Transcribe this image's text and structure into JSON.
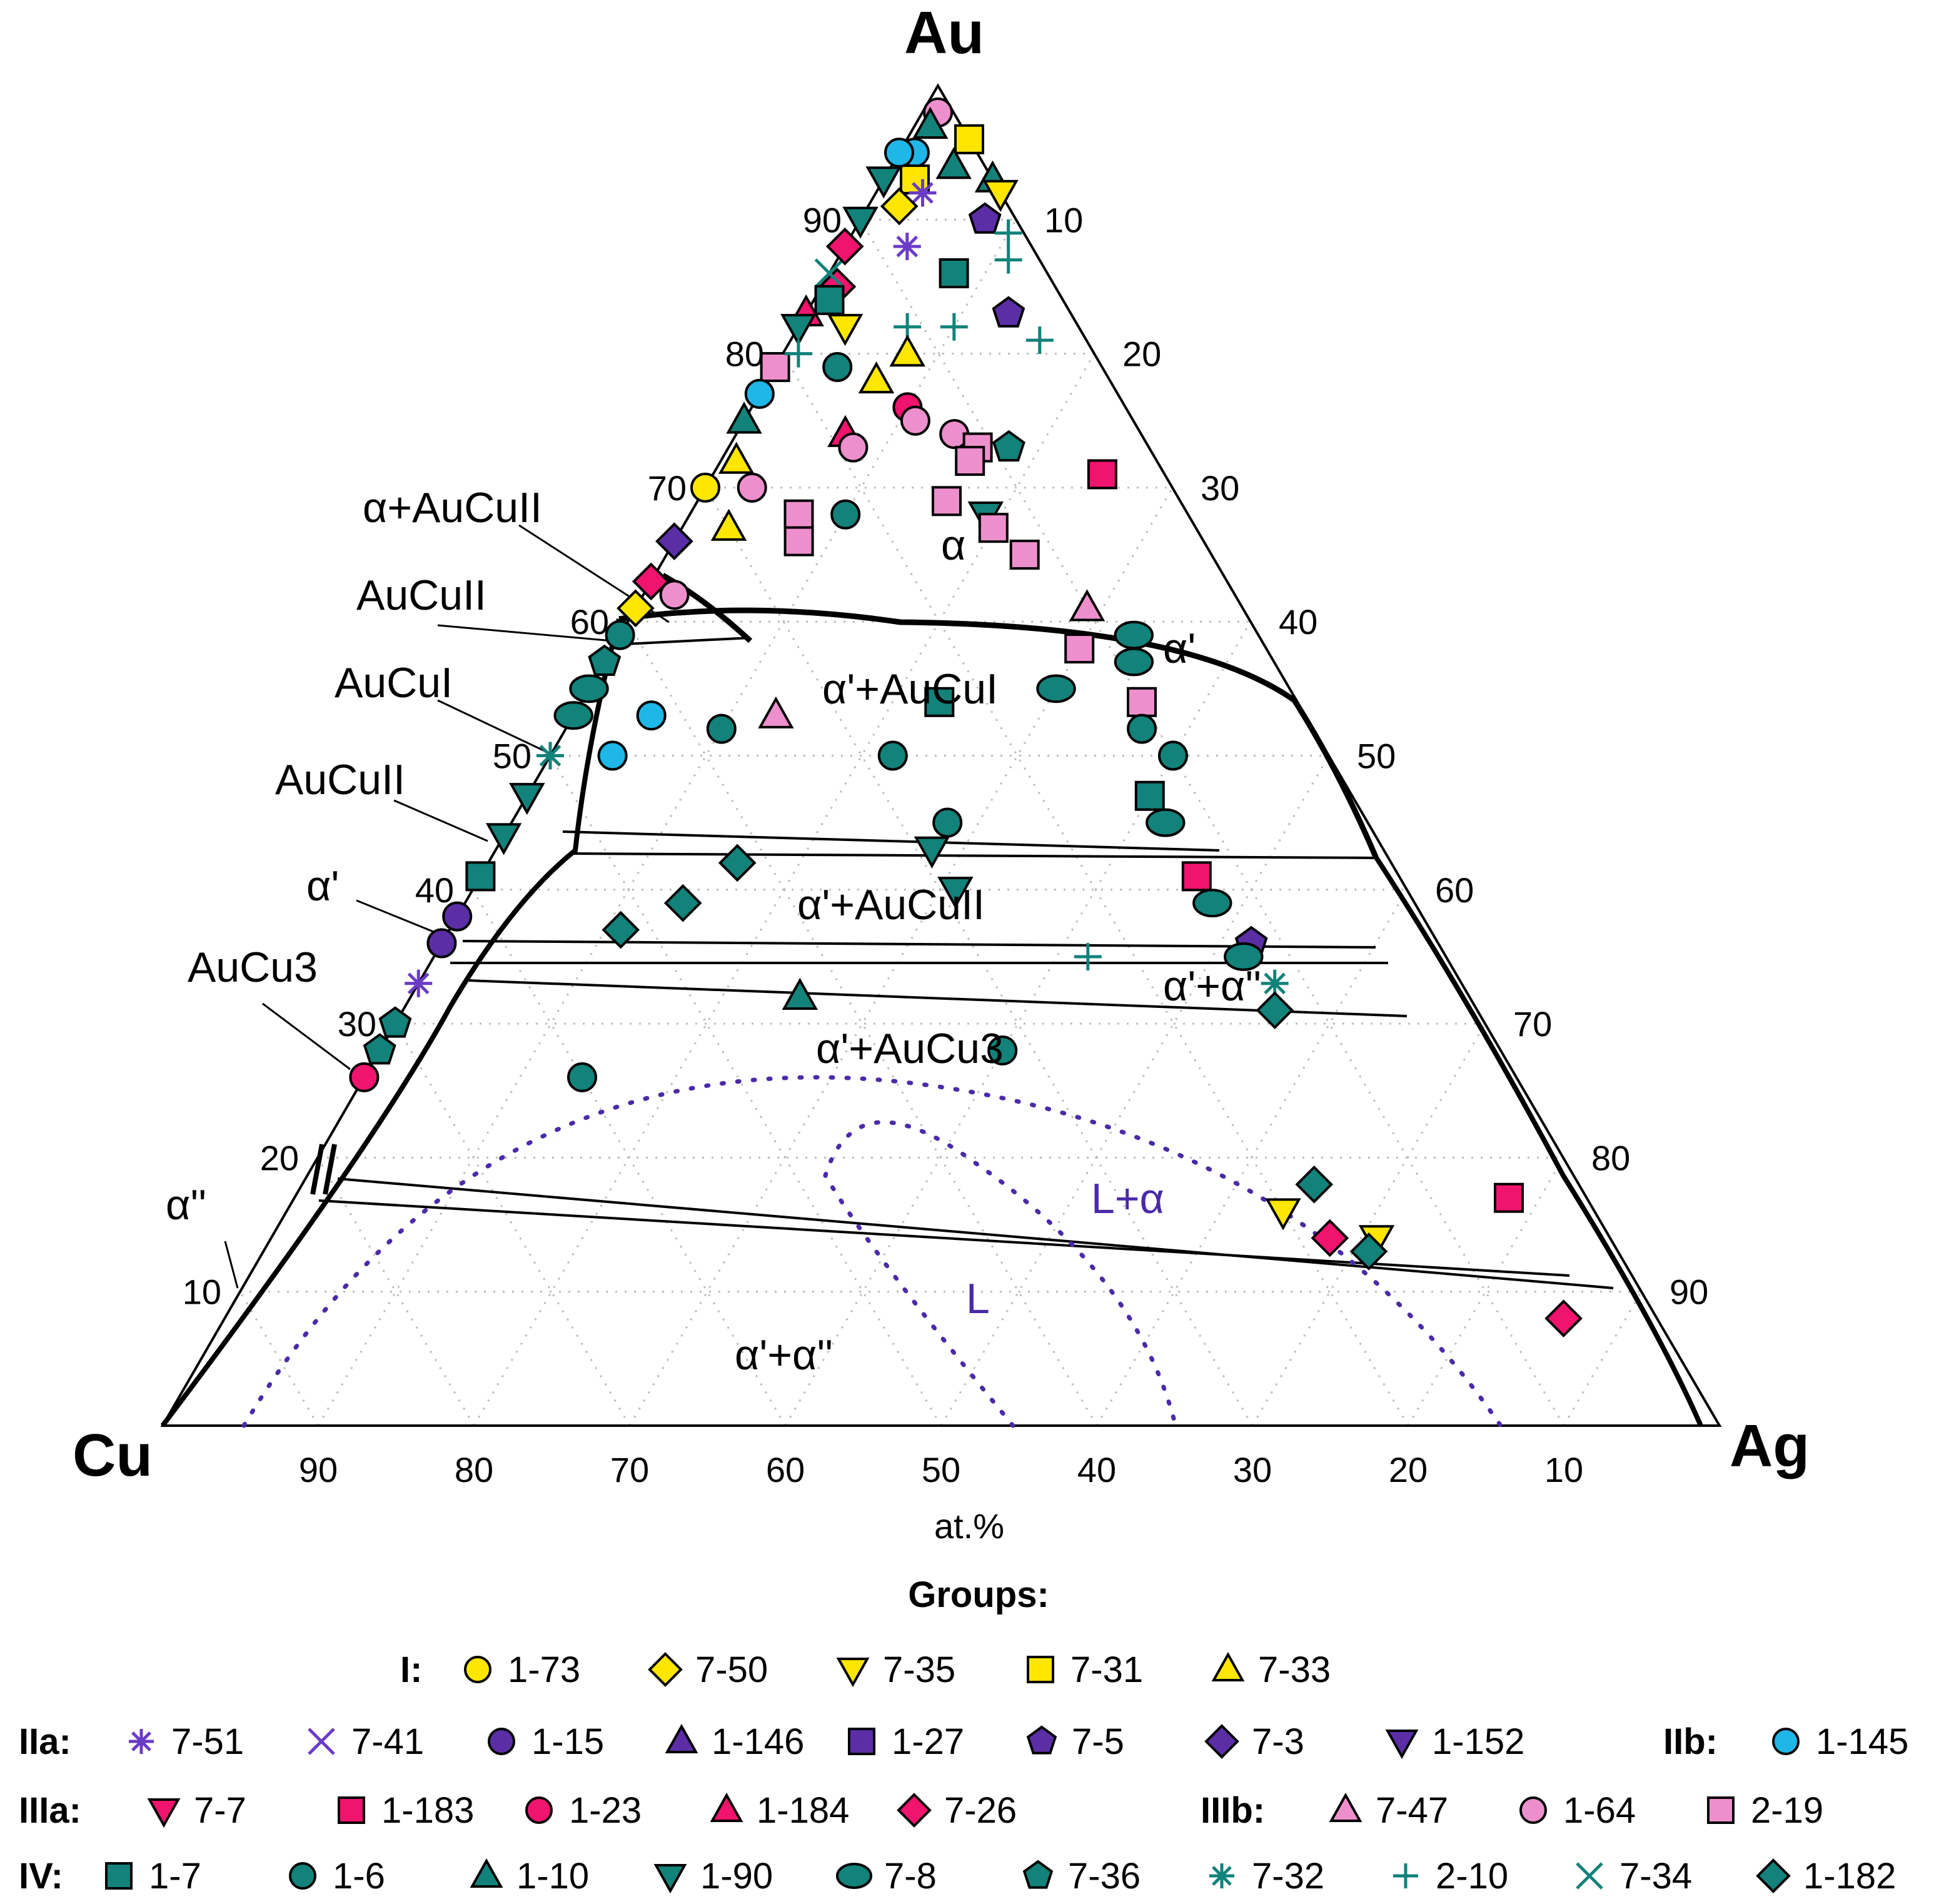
{
  "chart_data": {
    "type": "ternary",
    "vertices": {
      "top": "Au",
      "left": "Cu",
      "right": "Ag"
    },
    "unit_label": "at.%",
    "ticks": {
      "bottom": [
        "90",
        "80",
        "70",
        "60",
        "50",
        "40",
        "30",
        "20",
        "10"
      ],
      "right": [
        "10",
        "20",
        "30",
        "40",
        "50",
        "60",
        "70",
        "80",
        "90"
      ],
      "left": [
        "90",
        "80",
        "70",
        "60",
        "50",
        "40",
        "30",
        "20",
        "10"
      ]
    },
    "phase_labels": [
      "α+AuCuII",
      "AuCuII",
      "AuCuI",
      "AuCuII",
      "α'",
      "AuCu3",
      "α''",
      "α",
      "α'",
      "α'+AuCuI",
      "α'+AuCuII",
      "α'+α''",
      "α'+AuCu3",
      "L+α",
      "L",
      "α'+α''"
    ],
    "legend": {
      "title": "Groups:",
      "groups": [
        {
          "name": "I:",
          "items": [
            {
              "label": "1-73",
              "marker": "circle",
              "color": "#ffe600"
            },
            {
              "label": "7-50",
              "marker": "diamond",
              "color": "#ffe600"
            },
            {
              "label": "7-35",
              "marker": "triangle-down",
              "color": "#ffe600"
            },
            {
              "label": "7-31",
              "marker": "square",
              "color": "#ffe600"
            },
            {
              "label": "7-33",
              "marker": "triangle-up",
              "color": "#ffe600"
            }
          ]
        },
        {
          "name": "IIa:",
          "items": [
            {
              "label": "7-51",
              "marker": "asterisk",
              "color": "#6a3bc7"
            },
            {
              "label": "7-41",
              "marker": "x",
              "color": "#6a3bc7"
            },
            {
              "label": "1-15",
              "marker": "circle",
              "color": "#5b2ea6"
            },
            {
              "label": "1-146",
              "marker": "triangle-up",
              "color": "#5b2ea6"
            },
            {
              "label": "1-27",
              "marker": "square",
              "color": "#5b2ea6"
            },
            {
              "label": "7-5",
              "marker": "pentagon",
              "color": "#5b2ea6"
            },
            {
              "label": "7-3",
              "marker": "diamond",
              "color": "#5b2ea6"
            },
            {
              "label": "1-152",
              "marker": "triangle-down",
              "color": "#5b2ea6"
            }
          ]
        },
        {
          "name": "IIb:",
          "items": [
            {
              "label": "1-145",
              "marker": "circle",
              "color": "#1fb7e8"
            }
          ]
        },
        {
          "name": "IIIa:",
          "items": [
            {
              "label": "7-7",
              "marker": "triangle-down",
              "color": "#f0146e"
            },
            {
              "label": "1-183",
              "marker": "square",
              "color": "#f0146e"
            },
            {
              "label": "1-23",
              "marker": "circle",
              "color": "#f0146e"
            },
            {
              "label": "1-184",
              "marker": "triangle-up",
              "color": "#f0146e"
            },
            {
              "label": "7-26",
              "marker": "diamond",
              "color": "#f0146e"
            }
          ]
        },
        {
          "name": "IIIb:",
          "items": [
            {
              "label": "7-47",
              "marker": "triangle-up",
              "color": "#ee8fcd"
            },
            {
              "label": "1-64",
              "marker": "circle",
              "color": "#ee8fcd"
            },
            {
              "label": "2-19",
              "marker": "square",
              "color": "#ee8fcd"
            }
          ]
        },
        {
          "name": "IV:",
          "items": [
            {
              "label": "1-7",
              "marker": "square",
              "color": "#12827a"
            },
            {
              "label": "1-6",
              "marker": "circle",
              "color": "#12827a"
            },
            {
              "label": "1-10",
              "marker": "triangle-up",
              "color": "#12827a"
            },
            {
              "label": "1-90",
              "marker": "triangle-down",
              "color": "#12827a"
            },
            {
              "label": "7-8",
              "marker": "ellipse",
              "color": "#12827a"
            },
            {
              "label": "7-36",
              "marker": "pentagon",
              "color": "#12827a"
            },
            {
              "label": "7-32",
              "marker": "asterisk",
              "color": "#12827a"
            },
            {
              "label": "2-10",
              "marker": "plus",
              "color": "#12827a"
            },
            {
              "label": "7-34",
              "marker": "x",
              "color": "#12827a"
            },
            {
              "label": "1-182",
              "marker": "diamond",
              "color": "#12827a"
            }
          ]
        }
      ]
    },
    "points": [
      {
        "au": 98,
        "ag": 1,
        "m": "circle",
        "c": "#ee8fcd"
      },
      {
        "au": 97,
        "ag": 1,
        "m": "triangle-up",
        "c": "#12827a"
      },
      {
        "au": 95,
        "ag": 1,
        "m": "circle",
        "c": "#1fb7e8"
      },
      {
        "au": 96,
        "ag": 4,
        "m": "square",
        "c": "#ffe600"
      },
      {
        "au": 94,
        "ag": 4,
        "m": "triangle-up",
        "c": "#12827a"
      },
      {
        "au": 93,
        "ag": 2,
        "m": "square",
        "c": "#ffe600"
      },
      {
        "au": 92,
        "ag": 3,
        "m": "asterisk",
        "c": "#6a3bc7"
      },
      {
        "au": 91,
        "ag": 2,
        "m": "diamond",
        "c": "#ffe600"
      },
      {
        "au": 93,
        "ag": 7,
        "m": "triangle-up",
        "c": "#12827a"
      },
      {
        "au": 92,
        "ag": 8,
        "m": "triangle-down",
        "c": "#ffe600"
      },
      {
        "au": 90,
        "ag": 8,
        "m": "pentagon",
        "c": "#5b2ea6"
      },
      {
        "au": 89,
        "ag": 10,
        "m": "plus",
        "c": "#12827a"
      },
      {
        "au": 88,
        "ag": 4,
        "m": "asterisk",
        "c": "#6a3bc7"
      },
      {
        "au": 87,
        "ag": 11,
        "m": "plus",
        "c": "#12827a"
      },
      {
        "au": 86,
        "ag": 8,
        "m": "square",
        "c": "#12827a"
      },
      {
        "au": 85,
        "ag": 1,
        "m": "diamond",
        "c": "#f0146e"
      },
      {
        "au": 83,
        "ag": 0,
        "m": "triangle-up",
        "c": "#f0146e"
      },
      {
        "au": 82,
        "ag": 3,
        "m": "triangle-down",
        "c": "#ffe600"
      },
      {
        "au": 83,
        "ag": 13,
        "m": "pentagon",
        "c": "#5b2ea6"
      },
      {
        "au": 82,
        "ag": 7,
        "m": "plus",
        "c": "#12827a"
      },
      {
        "au": 82,
        "ag": 10,
        "m": "plus",
        "c": "#12827a"
      },
      {
        "au": 81,
        "ag": 16,
        "m": "plus",
        "c": "#12827a"
      },
      {
        "au": 80,
        "ag": 8,
        "m": "triangle-up",
        "c": "#ffe600"
      },
      {
        "au": 79,
        "ag": 4,
        "m": "circle",
        "c": "#12827a"
      },
      {
        "au": 78,
        "ag": 7,
        "m": "triangle-up",
        "c": "#ffe600"
      },
      {
        "au": 76,
        "ag": 10,
        "m": "circle",
        "c": "#f0146e"
      },
      {
        "au": 74,
        "ag": 7,
        "m": "triangle-up",
        "c": "#f0146e"
      },
      {
        "au": 75,
        "ag": 11,
        "m": "circle",
        "c": "#ee8fcd"
      },
      {
        "au": 74,
        "ag": 14,
        "m": "circle",
        "c": "#ee8fcd"
      },
      {
        "au": 73,
        "ag": 8,
        "m": "circle",
        "c": "#ee8fcd"
      },
      {
        "au": 73,
        "ag": 16,
        "m": "square",
        "c": "#ee8fcd"
      },
      {
        "au": 73,
        "ag": 18,
        "m": "pentagon",
        "c": "#12827a"
      },
      {
        "au": 72,
        "ag": 16,
        "m": "square",
        "c": "#ee8fcd"
      },
      {
        "au": 71,
        "ag": 25,
        "m": "square",
        "c": "#f0146e"
      },
      {
        "au": 70,
        "ag": 3,
        "m": "circle",
        "c": "#ee8fcd"
      },
      {
        "au": 69,
        "ag": 16,
        "m": "square",
        "c": "#ee8fcd"
      },
      {
        "au": 68,
        "ag": 10,
        "m": "circle",
        "c": "#12827a"
      },
      {
        "au": 68,
        "ag": 7,
        "m": "square",
        "c": "#ee8fcd"
      },
      {
        "au": 68,
        "ag": 19,
        "m": "triangle-down",
        "c": "#12827a"
      },
      {
        "au": 67,
        "ag": 20,
        "m": "square",
        "c": "#ee8fcd"
      },
      {
        "au": 66,
        "ag": 8,
        "m": "square",
        "c": "#ee8fcd"
      },
      {
        "au": 65,
        "ag": 23,
        "m": "square",
        "c": "#ee8fcd"
      },
      {
        "au": 58,
        "ag": 30,
        "m": "square",
        "c": "#ee8fcd"
      },
      {
        "au": 61,
        "ag": 29,
        "m": "triangle-up",
        "c": "#ee8fcd"
      },
      {
        "au": 59,
        "ag": 33,
        "m": "ellipse",
        "c": "#12827a"
      },
      {
        "au": 57,
        "ag": 34,
        "m": "ellipse",
        "c": "#12827a"
      },
      {
        "au": 55,
        "ag": 30,
        "m": "ellipse",
        "c": "#12827a"
      },
      {
        "au": 54,
        "ag": 36,
        "m": "square",
        "c": "#ee8fcd"
      },
      {
        "au": 54,
        "ag": 23,
        "m": "square",
        "c": "#12827a"
      },
      {
        "au": 53,
        "ag": 13,
        "m": "triangle-up",
        "c": "#ee8fcd"
      },
      {
        "au": 52,
        "ag": 37,
        "m": "circle",
        "c": "#12827a"
      },
      {
        "au": 50,
        "ag": 40,
        "m": "circle",
        "c": "#12827a"
      },
      {
        "au": 47,
        "ag": 40,
        "m": "square",
        "c": "#12827a"
      },
      {
        "au": 45,
        "ag": 42,
        "m": "ellipse",
        "c": "#12827a"
      },
      {
        "au": 45,
        "ag": 28,
        "m": "circle",
        "c": "#12827a"
      },
      {
        "au": 43,
        "ag": 28,
        "m": "triangle-down",
        "c": "#12827a"
      },
      {
        "au": 40,
        "ag": 31,
        "m": "triangle-down",
        "c": "#12827a"
      },
      {
        "au": 41,
        "ag": 46,
        "m": "square",
        "c": "#f0146e"
      },
      {
        "au": 39,
        "ag": 48,
        "m": "ellipse",
        "c": "#12827a"
      },
      {
        "au": 36,
        "ag": 52,
        "m": "pentagon",
        "c": "#5b2ea6"
      },
      {
        "au": 35,
        "ag": 52,
        "m": "ellipse",
        "c": "#12827a"
      },
      {
        "au": 33,
        "ag": 55,
        "m": "asterisk",
        "c": "#12827a"
      },
      {
        "au": 31,
        "ag": 56,
        "m": "diamond",
        "c": "#12827a"
      },
      {
        "au": 28,
        "ag": 40,
        "m": "circle",
        "c": "#12827a"
      },
      {
        "au": 32,
        "ag": 25,
        "m": "triangle-up",
        "c": "#12827a"
      },
      {
        "au": 35,
        "ag": 42,
        "m": "plus",
        "c": "#12827a"
      },
      {
        "au": 18,
        "ag": 65,
        "m": "diamond",
        "c": "#12827a"
      },
      {
        "au": 16,
        "ag": 64,
        "m": "triangle-down",
        "c": "#ffe600"
      },
      {
        "au": 14,
        "ag": 71,
        "m": "triangle-down",
        "c": "#ffe600"
      },
      {
        "au": 14,
        "ag": 68,
        "m": "diamond",
        "c": "#f0146e"
      },
      {
        "au": 13,
        "ag": 71,
        "m": "diamond",
        "c": "#12827a"
      },
      {
        "au": 17,
        "ag": 78,
        "m": "square",
        "c": "#f0146e"
      },
      {
        "au": 8,
        "ag": 86,
        "m": "diamond",
        "c": "#f0146e"
      },
      {
        "au": 52,
        "ag": 10,
        "m": "circle",
        "c": "#12827a"
      },
      {
        "au": 50,
        "ag": 22,
        "m": "circle",
        "c": "#12827a"
      },
      {
        "au": 42,
        "ag": 16,
        "m": "diamond",
        "c": "#12827a"
      },
      {
        "au": 39,
        "ag": 14,
        "m": "diamond",
        "c": "#12827a"
      },
      {
        "au": 37,
        "ag": 11,
        "m": "diamond",
        "c": "#12827a"
      },
      {
        "au": 26,
        "ag": 14,
        "m": "circle",
        "c": "#12827a"
      },
      {
        "au": 62,
        "ag": 2,
        "m": "circle",
        "c": "#ee8fcd"
      },
      {
        "au": 59,
        "ag": 0,
        "m": "circle",
        "c": "#12827a"
      },
      {
        "au": 53,
        "ag": 5,
        "m": "circle",
        "c": "#1fb7e8"
      },
      {
        "au": 50,
        "ag": 4,
        "m": "circle",
        "c": "#1fb7e8"
      },
      {
        "au": 72,
        "ag": 1,
        "m": "triangle-up",
        "c": "#ffe600"
      },
      {
        "au": 70,
        "ag": 0,
        "m": "circle",
        "c": "#ffe600"
      },
      {
        "au": 66,
        "ag": 0,
        "m": "diamond",
        "c": "#5b2ea6"
      },
      {
        "au": 67,
        "ag": 3,
        "m": "triangle-up",
        "c": "#ffe600"
      },
      {
        "au": 63,
        "ag": 0,
        "m": "diamond",
        "c": "#f0146e"
      },
      {
        "au": 61,
        "ag": 0,
        "m": "diamond",
        "c": "#ffe600"
      },
      {
        "au": 57,
        "ag": 0,
        "m": "pentagon",
        "c": "#12827a"
      },
      {
        "au": 55,
        "ag": 0,
        "m": "ellipse",
        "c": "#12827a"
      },
      {
        "au": 53,
        "ag": 0,
        "m": "ellipse",
        "c": "#12827a"
      },
      {
        "au": 50,
        "ag": 0,
        "m": "asterisk",
        "c": "#12827a"
      },
      {
        "au": 47,
        "ag": 0,
        "m": "triangle-down",
        "c": "#12827a"
      },
      {
        "au": 44,
        "ag": 0,
        "m": "triangle-down",
        "c": "#12827a"
      },
      {
        "au": 41,
        "ag": 0,
        "m": "square",
        "c": "#12827a"
      },
      {
        "au": 38,
        "ag": 0,
        "m": "circle",
        "c": "#5b2ea6"
      },
      {
        "au": 36,
        "ag": 0,
        "m": "circle",
        "c": "#5b2ea6"
      },
      {
        "au": 33,
        "ag": 0,
        "m": "asterisk",
        "c": "#6a3bc7"
      },
      {
        "au": 30,
        "ag": 0,
        "m": "pentagon",
        "c": "#12827a"
      },
      {
        "au": 28,
        "ag": 0,
        "m": "pentagon",
        "c": "#12827a"
      },
      {
        "au": 26,
        "ag": 0,
        "m": "circle",
        "c": "#f0146e"
      },
      {
        "au": 79,
        "ag": 0,
        "m": "square",
        "c": "#ee8fcd"
      },
      {
        "au": 77,
        "ag": 0,
        "m": "circle",
        "c": "#1fb7e8"
      },
      {
        "au": 75,
        "ag": 0,
        "m": "triangle-up",
        "c": "#12827a"
      },
      {
        "au": 82,
        "ag": 0,
        "m": "triangle-down",
        "c": "#12827a"
      },
      {
        "au": 86,
        "ag": 0,
        "m": "x",
        "c": "#12827a"
      },
      {
        "au": 90,
        "ag": 0,
        "m": "triangle-down",
        "c": "#12827a"
      },
      {
        "au": 93,
        "ag": 0,
        "m": "triangle-down",
        "c": "#12827a"
      },
      {
        "au": 95,
        "ag": 0,
        "m": "circle",
        "c": "#1fb7e8"
      },
      {
        "au": 84,
        "ag": 1,
        "m": "square",
        "c": "#12827a"
      },
      {
        "au": 88,
        "ag": 0,
        "m": "diamond",
        "c": "#f0146e"
      },
      {
        "au": 80,
        "ag": 1,
        "m": "plus",
        "c": "#12827a"
      }
    ]
  }
}
